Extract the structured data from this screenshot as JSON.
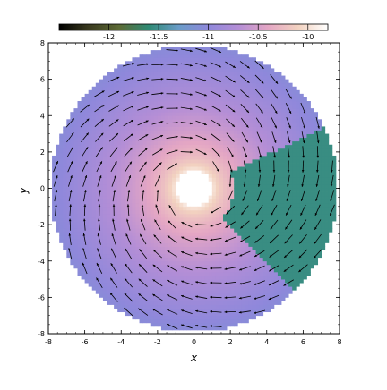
{
  "chart_data": {
    "type": "vector-field-heatmap",
    "title": "",
    "xlabel": "x",
    "ylabel": "y",
    "xlim": [
      -8,
      8
    ],
    "ylim": [
      -8,
      8
    ],
    "x_ticks": [
      -8,
      -6,
      -4,
      -2,
      0,
      2,
      4,
      6,
      8
    ],
    "y_ticks": [
      -8,
      -6,
      -4,
      -2,
      0,
      2,
      4,
      6,
      8
    ],
    "x_tick_labels": [
      "-8",
      "-6",
      "-4",
      "-2",
      "0",
      "2",
      "4",
      "6",
      "8"
    ],
    "y_tick_labels": [
      "-8",
      "-6",
      "-4",
      "-2",
      "0",
      "2",
      "4",
      "6",
      "8"
    ],
    "colorbar": {
      "placement": "top",
      "range": [
        -12.5,
        -9.8
      ],
      "ticks": [
        -12,
        -11.5,
        -11,
        -10.5,
        -10
      ],
      "tick_labels": [
        "-12",
        "-11.5",
        "-11",
        "-10.5",
        "-10"
      ],
      "colors": [
        "#000000",
        "#3a3a1f",
        "#5c6a35",
        "#2f8a74",
        "#6a9cc8",
        "#8f88db",
        "#b48ed6",
        "#e4a6c4",
        "#f2d2c0",
        "#ffffff"
      ]
    },
    "field": {
      "inner_radius": 1.0,
      "outer_radius": 7.9,
      "scalar_inner": -9.9,
      "scalar_outer": -11.05,
      "anomaly_sector_deg": [
        -45,
        25
      ],
      "anomaly_value": -11.55,
      "vector_grid_spacing": 0.8,
      "vector_pattern": "clockwise spiral"
    }
  }
}
